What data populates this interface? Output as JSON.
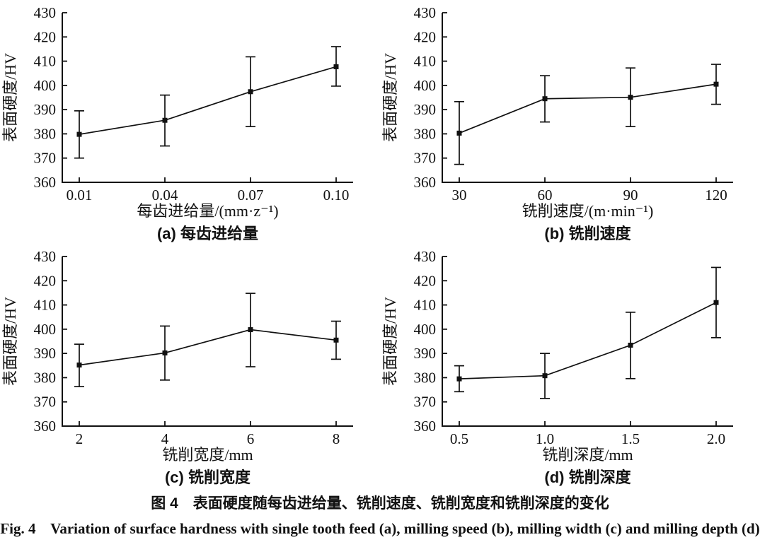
{
  "figure": {
    "caption_zh": "图 4　表面硬度随每齿进给量、铣削速度、铣削宽度和铣削深度的变化",
    "caption_en": "Fig. 4    Variation of surface hardness with single tooth feed (a), milling speed (b), milling width (c) and milling depth (d)",
    "background": "#ffffff",
    "line_color": "#111111"
  },
  "chart_data": [
    {
      "id": "a",
      "type": "line",
      "title": "(a) 每齿进给量",
      "xlabel": "每齿进给量/(mm·z⁻¹)",
      "ylabel": "表面硬度/HV",
      "categories": [
        "0.01",
        "0.04",
        "0.07",
        "0.10"
      ],
      "series": [
        {
          "name": "表面硬度",
          "values": [
            379.8,
            385.6,
            397.4,
            407.7
          ],
          "err_low": [
            9.8,
            10.6,
            14.4,
            8.0
          ],
          "err_high": [
            9.7,
            10.4,
            14.4,
            8.3
          ]
        }
      ],
      "ylim": [
        360,
        430
      ],
      "yticks": [
        360,
        370,
        380,
        390,
        400,
        410,
        420,
        430
      ],
      "grid": false,
      "legend": "none",
      "marker": "filled-square"
    },
    {
      "id": "b",
      "type": "line",
      "title": "(b) 铣削速度",
      "xlabel": "铣削速度/(m·min⁻¹)",
      "ylabel": "表面硬度/HV",
      "categories": [
        "30",
        "60",
        "90",
        "120"
      ],
      "series": [
        {
          "name": "表面硬度",
          "values": [
            380.3,
            394.5,
            395.1,
            400.5
          ],
          "err_low": [
            12.9,
            9.6,
            12.1,
            8.3
          ],
          "err_high": [
            13.0,
            9.5,
            12.1,
            8.2
          ]
        }
      ],
      "ylim": [
        360,
        430
      ],
      "yticks": [
        360,
        370,
        380,
        390,
        400,
        410,
        420,
        430
      ],
      "grid": false,
      "legend": "none",
      "marker": "filled-square"
    },
    {
      "id": "c",
      "type": "line",
      "title": "(c) 铣削宽度",
      "xlabel": "铣削宽度/mm",
      "ylabel": "表面硬度/HV",
      "categories": [
        "2",
        "4",
        "6",
        "8"
      ],
      "series": [
        {
          "name": "表面硬度",
          "values": [
            385.2,
            390.2,
            399.8,
            395.5
          ],
          "err_low": [
            8.9,
            11.2,
            15.3,
            7.9
          ],
          "err_high": [
            8.6,
            11.1,
            15.0,
            7.8
          ]
        }
      ],
      "ylim": [
        360,
        430
      ],
      "yticks": [
        360,
        370,
        380,
        390,
        400,
        410,
        420,
        430
      ],
      "grid": false,
      "legend": "none",
      "marker": "filled-square"
    },
    {
      "id": "d",
      "type": "line",
      "title": "(d) 铣削深度",
      "xlabel": "铣削深度/mm",
      "ylabel": "表面硬度/HV",
      "categories": [
        "0.5",
        "1.0",
        "1.5",
        "2.0"
      ],
      "series": [
        {
          "name": "表面硬度",
          "values": [
            379.5,
            380.8,
            393.4,
            411.0
          ],
          "err_low": [
            5.3,
            9.4,
            13.8,
            14.5
          ],
          "err_high": [
            5.4,
            9.2,
            13.6,
            14.5
          ]
        }
      ],
      "ylim": [
        360,
        430
      ],
      "yticks": [
        360,
        370,
        380,
        390,
        400,
        410,
        420,
        430
      ],
      "grid": false,
      "legend": "none",
      "marker": "filled-square"
    }
  ]
}
